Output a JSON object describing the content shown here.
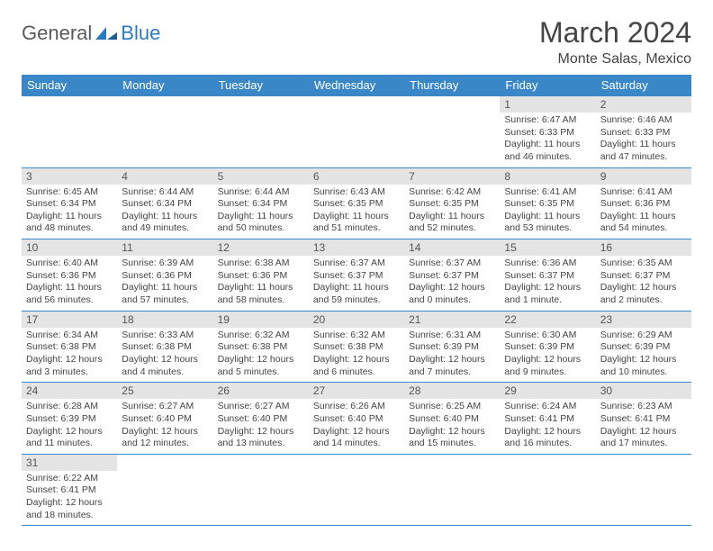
{
  "logo": {
    "general": "General",
    "blue": "Blue"
  },
  "title": "March 2024",
  "location": "Monte Salas, Mexico",
  "colors": {
    "header_bg": "#3a87c7",
    "header_text": "#ffffff",
    "daynum_bg": "#e4e4e4",
    "border": "#3a87c7",
    "text": "#444444"
  },
  "dayHeaders": [
    "Sunday",
    "Monday",
    "Tuesday",
    "Wednesday",
    "Thursday",
    "Friday",
    "Saturday"
  ],
  "weeks": [
    [
      null,
      null,
      null,
      null,
      null,
      {
        "n": "1",
        "sr": "Sunrise: 6:47 AM",
        "ss": "Sunset: 6:33 PM",
        "dl": "Daylight: 11 hours and 46 minutes."
      },
      {
        "n": "2",
        "sr": "Sunrise: 6:46 AM",
        "ss": "Sunset: 6:33 PM",
        "dl": "Daylight: 11 hours and 47 minutes."
      }
    ],
    [
      {
        "n": "3",
        "sr": "Sunrise: 6:45 AM",
        "ss": "Sunset: 6:34 PM",
        "dl": "Daylight: 11 hours and 48 minutes."
      },
      {
        "n": "4",
        "sr": "Sunrise: 6:44 AM",
        "ss": "Sunset: 6:34 PM",
        "dl": "Daylight: 11 hours and 49 minutes."
      },
      {
        "n": "5",
        "sr": "Sunrise: 6:44 AM",
        "ss": "Sunset: 6:34 PM",
        "dl": "Daylight: 11 hours and 50 minutes."
      },
      {
        "n": "6",
        "sr": "Sunrise: 6:43 AM",
        "ss": "Sunset: 6:35 PM",
        "dl": "Daylight: 11 hours and 51 minutes."
      },
      {
        "n": "7",
        "sr": "Sunrise: 6:42 AM",
        "ss": "Sunset: 6:35 PM",
        "dl": "Daylight: 11 hours and 52 minutes."
      },
      {
        "n": "8",
        "sr": "Sunrise: 6:41 AM",
        "ss": "Sunset: 6:35 PM",
        "dl": "Daylight: 11 hours and 53 minutes."
      },
      {
        "n": "9",
        "sr": "Sunrise: 6:41 AM",
        "ss": "Sunset: 6:36 PM",
        "dl": "Daylight: 11 hours and 54 minutes."
      }
    ],
    [
      {
        "n": "10",
        "sr": "Sunrise: 6:40 AM",
        "ss": "Sunset: 6:36 PM",
        "dl": "Daylight: 11 hours and 56 minutes."
      },
      {
        "n": "11",
        "sr": "Sunrise: 6:39 AM",
        "ss": "Sunset: 6:36 PM",
        "dl": "Daylight: 11 hours and 57 minutes."
      },
      {
        "n": "12",
        "sr": "Sunrise: 6:38 AM",
        "ss": "Sunset: 6:36 PM",
        "dl": "Daylight: 11 hours and 58 minutes."
      },
      {
        "n": "13",
        "sr": "Sunrise: 6:37 AM",
        "ss": "Sunset: 6:37 PM",
        "dl": "Daylight: 11 hours and 59 minutes."
      },
      {
        "n": "14",
        "sr": "Sunrise: 6:37 AM",
        "ss": "Sunset: 6:37 PM",
        "dl": "Daylight: 12 hours and 0 minutes."
      },
      {
        "n": "15",
        "sr": "Sunrise: 6:36 AM",
        "ss": "Sunset: 6:37 PM",
        "dl": "Daylight: 12 hours and 1 minute."
      },
      {
        "n": "16",
        "sr": "Sunrise: 6:35 AM",
        "ss": "Sunset: 6:37 PM",
        "dl": "Daylight: 12 hours and 2 minutes."
      }
    ],
    [
      {
        "n": "17",
        "sr": "Sunrise: 6:34 AM",
        "ss": "Sunset: 6:38 PM",
        "dl": "Daylight: 12 hours and 3 minutes."
      },
      {
        "n": "18",
        "sr": "Sunrise: 6:33 AM",
        "ss": "Sunset: 6:38 PM",
        "dl": "Daylight: 12 hours and 4 minutes."
      },
      {
        "n": "19",
        "sr": "Sunrise: 6:32 AM",
        "ss": "Sunset: 6:38 PM",
        "dl": "Daylight: 12 hours and 5 minutes."
      },
      {
        "n": "20",
        "sr": "Sunrise: 6:32 AM",
        "ss": "Sunset: 6:38 PM",
        "dl": "Daylight: 12 hours and 6 minutes."
      },
      {
        "n": "21",
        "sr": "Sunrise: 6:31 AM",
        "ss": "Sunset: 6:39 PM",
        "dl": "Daylight: 12 hours and 7 minutes."
      },
      {
        "n": "22",
        "sr": "Sunrise: 6:30 AM",
        "ss": "Sunset: 6:39 PM",
        "dl": "Daylight: 12 hours and 9 minutes."
      },
      {
        "n": "23",
        "sr": "Sunrise: 6:29 AM",
        "ss": "Sunset: 6:39 PM",
        "dl": "Daylight: 12 hours and 10 minutes."
      }
    ],
    [
      {
        "n": "24",
        "sr": "Sunrise: 6:28 AM",
        "ss": "Sunset: 6:39 PM",
        "dl": "Daylight: 12 hours and 11 minutes."
      },
      {
        "n": "25",
        "sr": "Sunrise: 6:27 AM",
        "ss": "Sunset: 6:40 PM",
        "dl": "Daylight: 12 hours and 12 minutes."
      },
      {
        "n": "26",
        "sr": "Sunrise: 6:27 AM",
        "ss": "Sunset: 6:40 PM",
        "dl": "Daylight: 12 hours and 13 minutes."
      },
      {
        "n": "27",
        "sr": "Sunrise: 6:26 AM",
        "ss": "Sunset: 6:40 PM",
        "dl": "Daylight: 12 hours and 14 minutes."
      },
      {
        "n": "28",
        "sr": "Sunrise: 6:25 AM",
        "ss": "Sunset: 6:40 PM",
        "dl": "Daylight: 12 hours and 15 minutes."
      },
      {
        "n": "29",
        "sr": "Sunrise: 6:24 AM",
        "ss": "Sunset: 6:41 PM",
        "dl": "Daylight: 12 hours and 16 minutes."
      },
      {
        "n": "30",
        "sr": "Sunrise: 6:23 AM",
        "ss": "Sunset: 6:41 PM",
        "dl": "Daylight: 12 hours and 17 minutes."
      }
    ],
    [
      {
        "n": "31",
        "sr": "Sunrise: 6:22 AM",
        "ss": "Sunset: 6:41 PM",
        "dl": "Daylight: 12 hours and 18 minutes."
      },
      null,
      null,
      null,
      null,
      null,
      null
    ]
  ]
}
